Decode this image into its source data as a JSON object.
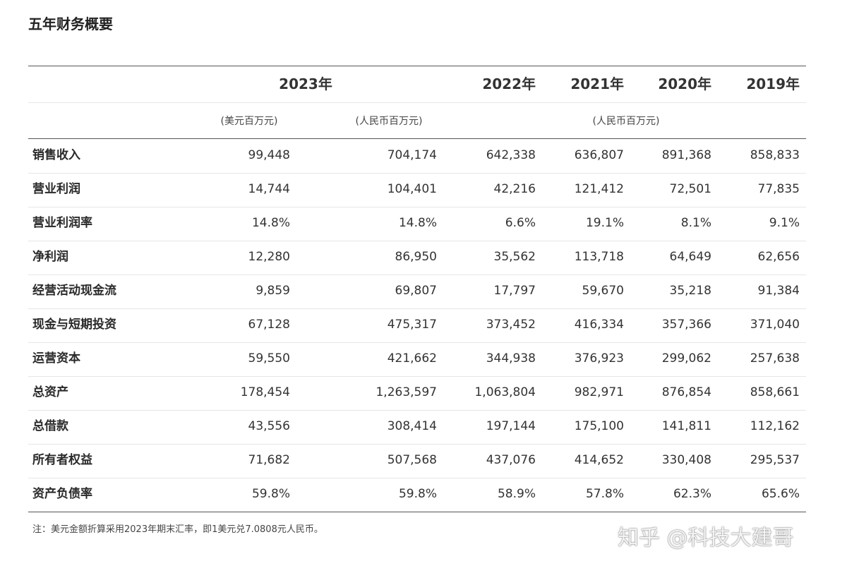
{
  "title": "五年财务概要",
  "table": {
    "header": {
      "years": [
        "2023年",
        "2022年",
        "2021年",
        "2020年",
        "2019年"
      ],
      "units": [
        "(美元百万元)",
        "(人民币百万元)",
        "(人民币百万元)"
      ]
    },
    "rows": [
      [
        "销售收入",
        "99,448",
        "704,174",
        "642,338",
        "636,807",
        "891,368",
        "858,833"
      ],
      [
        "营业利润",
        "14,744",
        "104,401",
        "42,216",
        "121,412",
        "72,501",
        "77,835"
      ],
      [
        "营业利润率",
        "14.8%",
        "14.8%",
        "6.6%",
        "19.1%",
        "8.1%",
        "9.1%"
      ],
      [
        "净利润",
        "12,280",
        "86,950",
        "35,562",
        "113,718",
        "64,649",
        "62,656"
      ],
      [
        "经营活动现金流",
        "9,859",
        "69,807",
        "17,797",
        "59,670",
        "35,218",
        "91,384"
      ],
      [
        "现金与短期投资",
        "67,128",
        "475,317",
        "373,452",
        "416,334",
        "357,366",
        "371,040"
      ],
      [
        "运营资本",
        "59,550",
        "421,662",
        "344,938",
        "376,923",
        "299,062",
        "257,638"
      ],
      [
        "总资产",
        "178,454",
        "1,263,597",
        "1,063,804",
        "982,971",
        "876,854",
        "858,661"
      ],
      [
        "总借款",
        "43,556",
        "308,414",
        "197,144",
        "175,100",
        "141,811",
        "112,162"
      ],
      [
        "所有者权益",
        "71,682",
        "507,568",
        "437,076",
        "414,652",
        "330,408",
        "295,537"
      ],
      [
        "资产负债率",
        "59.8%",
        "59.8%",
        "58.9%",
        "57.8%",
        "62.3%",
        "65.6%"
      ]
    ]
  },
  "note": "注：美元金额折算采用2023年期末汇率，即1美元兑7.0808元人民币。",
  "watermark": "知乎 @科技大建哥"
}
